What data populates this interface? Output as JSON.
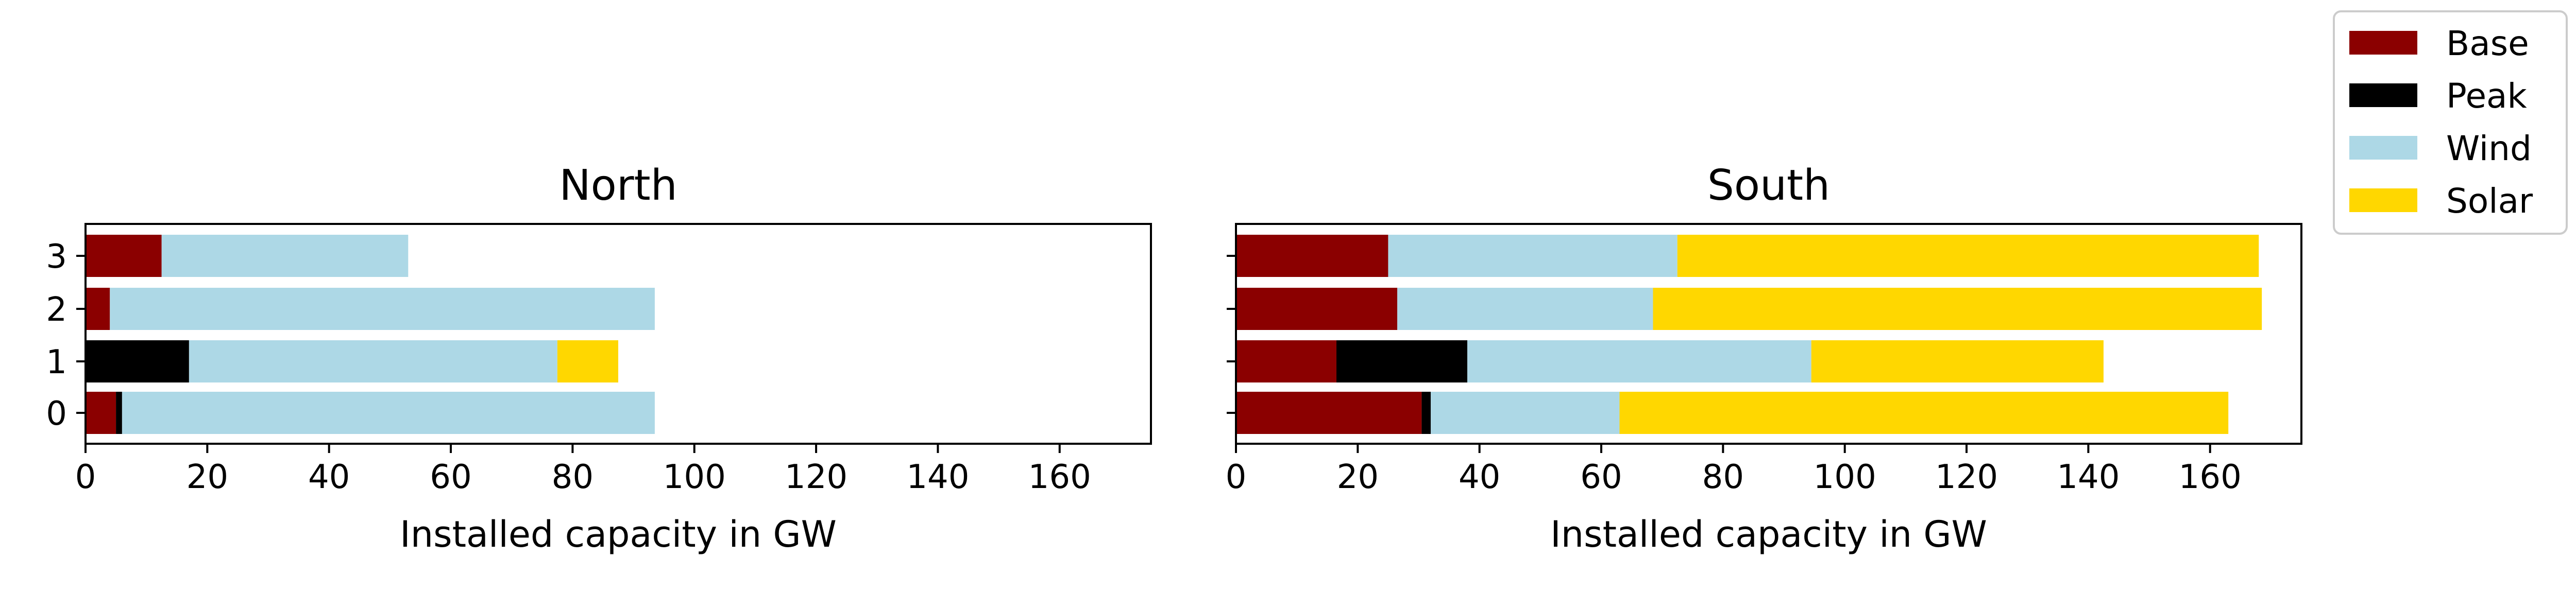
{
  "chart_data": [
    {
      "type": "bar",
      "orientation": "horizontal",
      "stacked": true,
      "title": "North",
      "xlabel": "Installed capacity in GW",
      "ylabel": "",
      "categories": [
        "0",
        "1",
        "2",
        "3"
      ],
      "xlim": [
        0,
        175
      ],
      "xticks": [
        "0",
        "20",
        "40",
        "60",
        "80",
        "100",
        "120",
        "140",
        "160"
      ],
      "grid": false,
      "series": [
        {
          "name": "Base",
          "color": "#8b0000",
          "values": [
            5.0,
            0.0,
            4.0,
            12.5
          ]
        },
        {
          "name": "Peak",
          "color": "#000000",
          "values": [
            1.0,
            17.0,
            0.0,
            0.0
          ]
        },
        {
          "name": "Wind",
          "color": "#add8e6",
          "values": [
            87.5,
            60.5,
            89.5,
            40.5
          ]
        },
        {
          "name": "Solar",
          "color": "#ffd700",
          "values": [
            0.0,
            10.0,
            0.0,
            0.0
          ]
        }
      ]
    },
    {
      "type": "bar",
      "orientation": "horizontal",
      "stacked": true,
      "title": "South",
      "xlabel": "Installed capacity in GW",
      "ylabel": "",
      "categories": [
        "0",
        "1",
        "2",
        "3"
      ],
      "xlim": [
        0,
        175
      ],
      "xticks": [
        "0",
        "20",
        "40",
        "60",
        "80",
        "100",
        "120",
        "140",
        "160"
      ],
      "grid": false,
      "series": [
        {
          "name": "Base",
          "color": "#8b0000",
          "values": [
            30.5,
            16.5,
            26.5,
            25.0
          ]
        },
        {
          "name": "Peak",
          "color": "#000000",
          "values": [
            1.5,
            21.5,
            0.0,
            0.0
          ]
        },
        {
          "name": "Wind",
          "color": "#add8e6",
          "values": [
            31.0,
            56.5,
            42.0,
            47.5
          ]
        },
        {
          "name": "Solar",
          "color": "#ffd700",
          "values": [
            100.0,
            48.0,
            100.0,
            95.5
          ]
        }
      ]
    }
  ],
  "legend": {
    "placement": "top-right",
    "entries": [
      {
        "label": "Base",
        "color": "#8b0000"
      },
      {
        "label": "Peak",
        "color": "#000000"
      },
      {
        "label": "Wind",
        "color": "#add8e6"
      },
      {
        "label": "Solar",
        "color": "#ffd700"
      }
    ]
  }
}
